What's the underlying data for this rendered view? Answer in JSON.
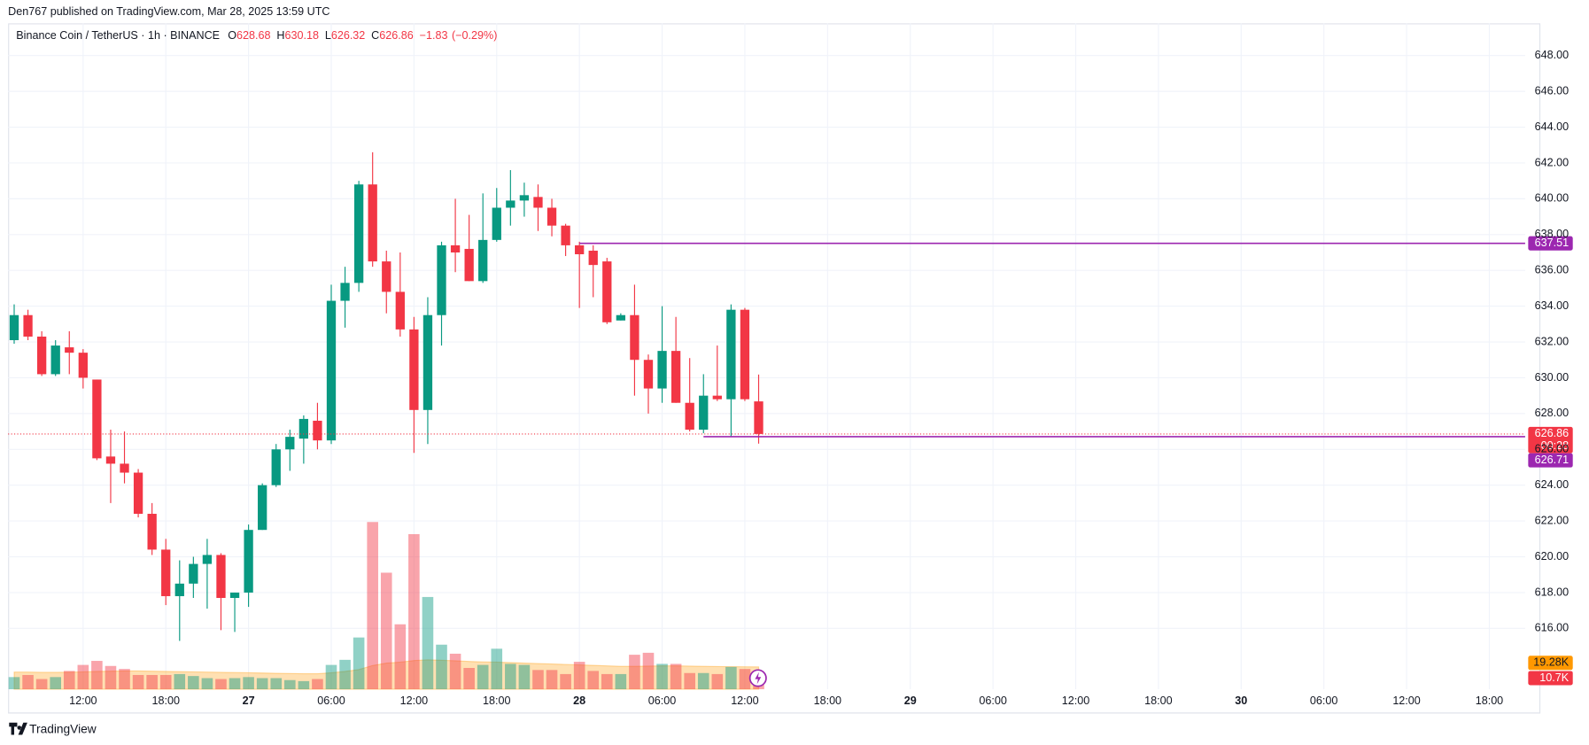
{
  "header": {
    "published": "Den767 published on TradingView.com, Mar 28, 2025 13:59 UTC"
  },
  "footer": {
    "brand": "TradingView"
  },
  "chart_data": {
    "type": "candlestick",
    "title": "Binance Coin / TetherUS · 1h · BINANCE",
    "legend_fields": [
      {
        "label": "O",
        "value": 628.68
      },
      {
        "label": "H",
        "value": 630.18
      },
      {
        "label": "L",
        "value": 626.32
      },
      {
        "label": "C",
        "value": 626.86
      }
    ],
    "change": {
      "value": -1.83,
      "label": "−1.83"
    },
    "change_pct": {
      "value": -0.29,
      "label": "(−0.29%)"
    },
    "up_color": "#089981",
    "down_color": "#f23645",
    "candles": {
      "open": [
        632.1,
        633.5,
        632.3,
        630.2,
        631.7,
        631.4,
        629.9,
        625.6,
        625.2,
        624.7,
        622.4,
        620.4,
        617.8,
        618.5,
        619.6,
        620.1,
        617.7,
        618.0,
        621.5,
        624.0,
        626.0,
        626.6,
        627.6,
        626.5,
        634.3,
        635.3,
        640.8,
        636.5,
        634.8,
        632.7,
        628.2,
        633.5,
        637.4,
        637.2,
        635.4,
        637.7,
        639.5,
        639.9,
        640.1,
        639.5,
        638.5,
        637.4,
        637.1,
        636.5,
        633.2,
        633.5,
        631.0,
        629.4,
        631.5,
        628.6,
        627.1,
        629.0,
        628.8,
        633.8,
        628.68
      ],
      "high": [
        634.1,
        633.8,
        632.6,
        632.1,
        632.6,
        631.6,
        629.9,
        627.1,
        627.0,
        624.9,
        623.0,
        621.0,
        619.8,
        620.0,
        621.0,
        620.2,
        618.0,
        621.8,
        624.1,
        626.3,
        627.1,
        627.9,
        628.6,
        635.2,
        636.2,
        641.0,
        642.6,
        637.1,
        637.0,
        633.4,
        634.5,
        637.6,
        640.0,
        639.1,
        640.3,
        640.6,
        641.6,
        640.9,
        640.8,
        640.0,
        638.6,
        637.6,
        637.4,
        636.7,
        633.6,
        635.2,
        631.3,
        634.0,
        633.4,
        631.1,
        630.2,
        631.8,
        634.1,
        633.9,
        630.18
      ],
      "low": [
        631.9,
        632.1,
        630.1,
        630.1,
        630.2,
        629.4,
        625.4,
        623.0,
        624.1,
        622.2,
        620.1,
        617.3,
        615.3,
        617.7,
        617.1,
        615.9,
        615.8,
        617.2,
        621.5,
        623.9,
        624.8,
        625.2,
        626.0,
        626.3,
        632.8,
        634.8,
        636.2,
        633.6,
        632.3,
        625.8,
        626.3,
        631.8,
        635.9,
        635.4,
        635.3,
        637.6,
        638.5,
        639.0,
        638.2,
        637.9,
        636.8,
        633.9,
        634.5,
        633.0,
        633.2,
        629.0,
        628.0,
        628.6,
        628.6,
        627.0,
        626.9,
        628.7,
        626.7,
        628.7,
        626.32
      ],
      "close": [
        633.5,
        632.3,
        630.2,
        631.8,
        631.4,
        630.0,
        625.5,
        625.2,
        624.7,
        622.4,
        620.4,
        617.8,
        618.5,
        619.6,
        620.1,
        617.7,
        618.0,
        621.5,
        624.0,
        626.0,
        626.7,
        627.7,
        626.5,
        634.3,
        635.3,
        640.8,
        636.5,
        634.8,
        632.7,
        628.2,
        633.5,
        637.4,
        637.0,
        635.4,
        637.7,
        639.5,
        639.9,
        640.2,
        639.5,
        638.5,
        637.4,
        636.9,
        636.3,
        633.1,
        633.5,
        631.0,
        629.4,
        631.5,
        628.6,
        627.1,
        629.0,
        628.8,
        633.8,
        628.8,
        626.86
      ]
    },
    "volume": [
      10500,
      12300,
      8800,
      10500,
      15800,
      21000,
      24500,
      20100,
      17500,
      12300,
      12300,
      12300,
      13100,
      11400,
      9600,
      8800,
      9600,
      10500,
      9600,
      9600,
      7900,
      7000,
      8800,
      21000,
      25400,
      44700,
      144500,
      100700,
      56100,
      134000,
      79700,
      38500,
      30700,
      18400,
      21000,
      35000,
      21900,
      21000,
      16600,
      16600,
      13100,
      23700,
      15800,
      13100,
      13100,
      29800,
      31500,
      21900,
      21900,
      14000,
      14000,
      13100,
      19300,
      17500,
      10700
    ],
    "volume_last_label": "10.7K",
    "volume_ma": [
      14800,
      14800,
      14600,
      14600,
      14700,
      15000,
      15400,
      15600,
      15800,
      15800,
      15600,
      15400,
      15200,
      15000,
      14800,
      14600,
      14400,
      14200,
      14000,
      13800,
      13600,
      13400,
      13400,
      14200,
      15400,
      17000,
      20500,
      22600,
      23400,
      24800,
      25400,
      25000,
      24600,
      24000,
      23600,
      23400,
      23000,
      22600,
      22200,
      21800,
      21400,
      21000,
      20600,
      20200,
      19800,
      19800,
      20000,
      20200,
      20200,
      20000,
      19800,
      19600,
      19500,
      19400,
      19280
    ],
    "volume_ma_last_label": "19.28K",
    "volume_ma_color": "#ff9800",
    "countdown": "00:28",
    "levels": [
      {
        "value": 637.51,
        "start": 41
      },
      {
        "value": 626.71,
        "start": 50
      }
    ],
    "level_color": "#9c27b0",
    "xlim": [
      -0.44,
      109.6
    ],
    "xticks": [
      {
        "value": 5,
        "label": "12:00"
      },
      {
        "value": 11,
        "label": "18:00"
      },
      {
        "value": 17,
        "label": "27"
      },
      {
        "value": 23,
        "label": "06:00"
      },
      {
        "value": 29,
        "label": "12:00"
      },
      {
        "value": 35,
        "label": "18:00"
      },
      {
        "value": 41,
        "label": "28"
      },
      {
        "value": 47,
        "label": "06:00"
      },
      {
        "value": 53,
        "label": "12:00"
      },
      {
        "value": 59,
        "label": "18:00"
      },
      {
        "value": 65,
        "label": "29"
      },
      {
        "value": 71,
        "label": "06:00"
      },
      {
        "value": 77,
        "label": "12:00"
      },
      {
        "value": 83,
        "label": "18:00"
      },
      {
        "value": 89,
        "label": "30"
      },
      {
        "value": 95,
        "label": "06:00"
      },
      {
        "value": 101,
        "label": "12:00"
      },
      {
        "value": 107,
        "label": "18:00"
      }
    ],
    "ylim": [
      612.6,
      649.8
    ],
    "yticks": [
      {
        "value": 616,
        "label": "616.00"
      },
      {
        "value": 618,
        "label": "618.00"
      },
      {
        "value": 620,
        "label": "620.00"
      },
      {
        "value": 622,
        "label": "622.00"
      },
      {
        "value": 624,
        "label": "624.00"
      },
      {
        "value": 626,
        "label": "626.00"
      },
      {
        "value": 628,
        "label": "628.00"
      },
      {
        "value": 630,
        "label": "630.00"
      },
      {
        "value": 632,
        "label": "632.00"
      },
      {
        "value": 634,
        "label": "634.00"
      },
      {
        "value": 636,
        "label": "636.00"
      },
      {
        "value": 638,
        "label": "638.00"
      },
      {
        "value": 640,
        "label": "640.00"
      },
      {
        "value": 642,
        "label": "642.00"
      },
      {
        "value": 644,
        "label": "644.00"
      },
      {
        "value": 646,
        "label": "646.00"
      },
      {
        "value": 648,
        "label": "648.00"
      }
    ],
    "grid": true
  }
}
